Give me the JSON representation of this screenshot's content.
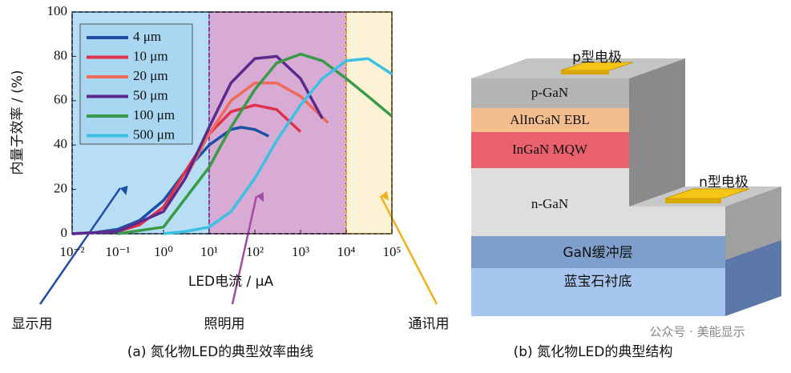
{
  "chart_data": {
    "type": "line",
    "ylabel": "内量子效率 / (%)",
    "xlabel": "LED电流 / μA",
    "caption": "(a) 氮化物LED的典型效率曲线",
    "xscale": "log",
    "xlim": [
      0.01,
      100000
    ],
    "ylim": [
      0,
      100
    ],
    "xticks": [
      {
        "value": 0.01,
        "label": "10⁻²"
      },
      {
        "value": 0.1,
        "label": "10⁻¹"
      },
      {
        "value": 1,
        "label": "10⁰"
      },
      {
        "value": 10,
        "label": "10¹"
      },
      {
        "value": 100,
        "label": "10²"
      },
      {
        "value": 1000,
        "label": "10³"
      },
      {
        "value": 10000,
        "label": "10⁴"
      },
      {
        "value": 100000,
        "label": "10⁵"
      }
    ],
    "yticks": [
      0,
      20,
      40,
      60,
      80,
      100
    ],
    "legend": "upper left",
    "regions": [
      {
        "label": "显示用",
        "from": 0.01,
        "to": 10,
        "color": "#9fd3f0"
      },
      {
        "label": "照明用",
        "from": 10,
        "to": 10000,
        "color": "#c98fc6"
      },
      {
        "label": "通讯用",
        "from": 10000,
        "to": 100000,
        "color": "#fbeec8"
      }
    ],
    "series": [
      {
        "name": "4 μm",
        "color": "#1e4fa8",
        "x": [
          0.01,
          0.03,
          0.1,
          0.3,
          1,
          3,
          10,
          30,
          50,
          100,
          200
        ],
        "values": [
          0,
          0.5,
          2,
          6,
          15,
          28,
          40,
          47,
          48,
          47,
          44
        ]
      },
      {
        "name": "10 μm",
        "color": "#e0304a",
        "x": [
          0.01,
          0.1,
          0.3,
          1,
          3,
          10,
          30,
          100,
          300,
          1000
        ],
        "values": [
          0,
          1,
          4,
          12,
          28,
          45,
          55,
          58,
          56,
          46
        ]
      },
      {
        "name": "20 μm",
        "color": "#f06a5a",
        "x": [
          0.01,
          0.1,
          1,
          3,
          10,
          30,
          100,
          300,
          1000,
          4000
        ],
        "values": [
          0,
          1,
          10,
          25,
          45,
          60,
          68,
          68,
          62,
          50
        ]
      },
      {
        "name": "50 μm",
        "color": "#5a2a8e",
        "x": [
          0.01,
          0.1,
          1,
          3,
          10,
          30,
          100,
          300,
          1000,
          3000
        ],
        "values": [
          0,
          1,
          10,
          25,
          48,
          68,
          79,
          80,
          70,
          52
        ]
      },
      {
        "name": "100 μm",
        "color": "#3a9a48",
        "x": [
          0.1,
          1,
          10,
          30,
          100,
          300,
          1000,
          3000,
          10000,
          30000,
          100000
        ],
        "values": [
          0,
          3,
          30,
          48,
          65,
          77,
          81,
          78,
          70,
          62,
          53
        ]
      },
      {
        "name": "500 μm",
        "color": "#3cc0e4",
        "x": [
          1,
          3,
          10,
          30,
          100,
          300,
          1000,
          3000,
          10000,
          30000,
          100000
        ],
        "values": [
          0,
          1,
          3,
          10,
          25,
          42,
          58,
          70,
          78,
          79,
          72
        ]
      }
    ]
  },
  "diagram": {
    "layers": [
      "p-GaN",
      "AlInGaN EBL",
      "InGaN MQW",
      "n-GaN",
      "GaN缓冲层",
      "蓝宝石衬底"
    ],
    "p_electrode": "p型电极",
    "n_electrode": "n型电极",
    "caption": "(b) 氮化物LED的典型结构"
  },
  "watermark": "公众号 · 美能显示"
}
